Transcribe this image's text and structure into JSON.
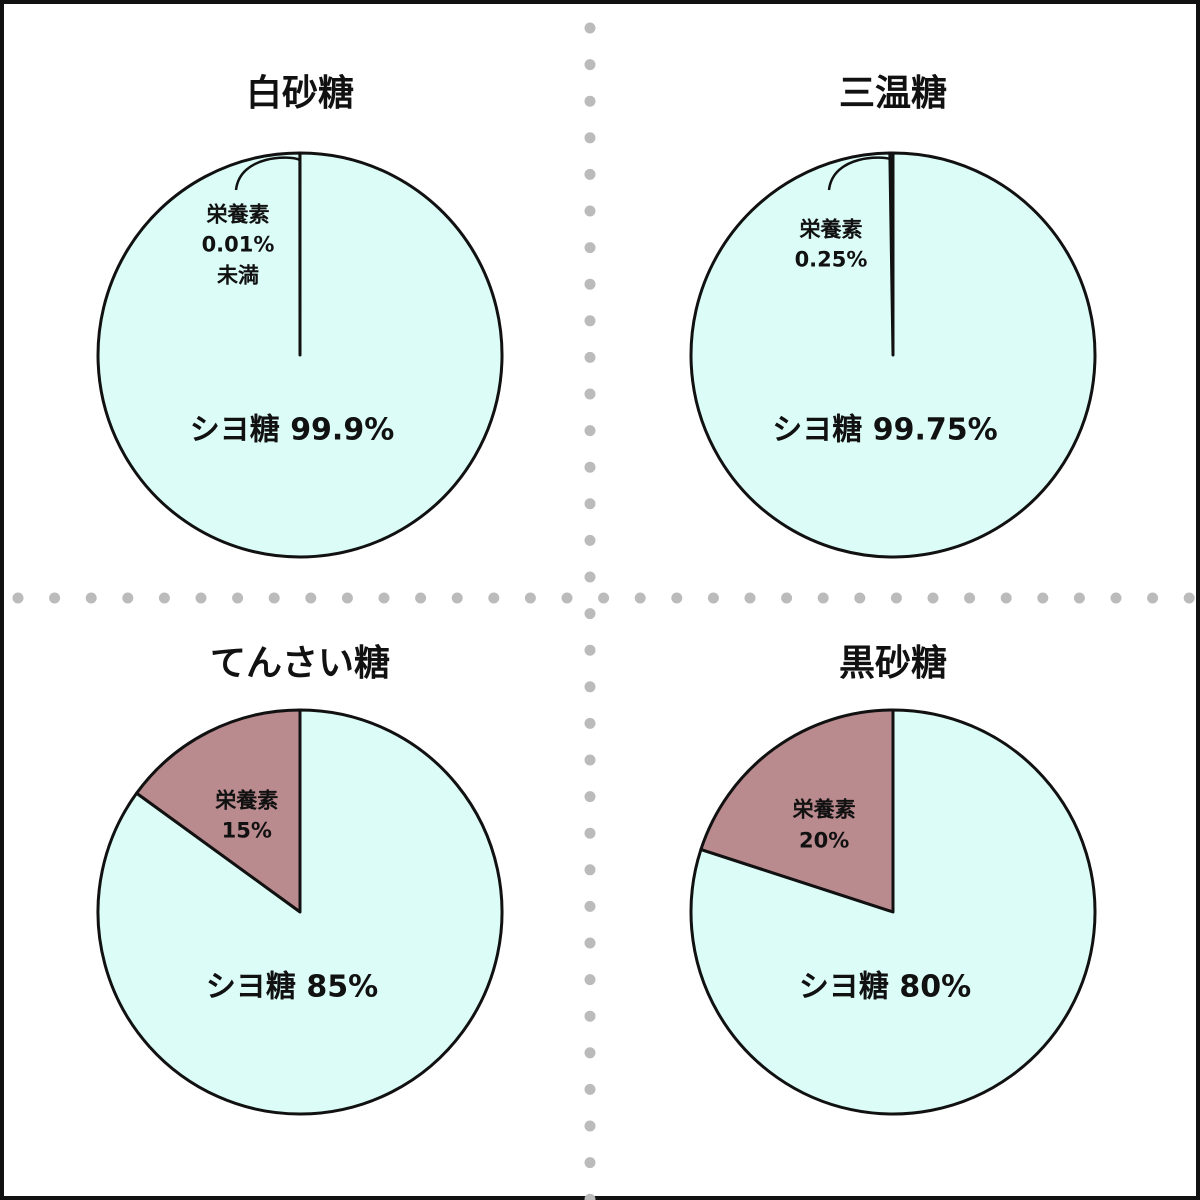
{
  "chart_data": [
    {
      "type": "pie",
      "title": "白砂糖",
      "categories": [
        "栄養素",
        "シヨ糖"
      ],
      "values": [
        0.01,
        99.9
      ],
      "value_labels": [
        "0.01%\n未満",
        "99.9%"
      ],
      "colors": [
        "#b98a8e",
        "#dcfdf7"
      ]
    },
    {
      "type": "pie",
      "title": "三温糖",
      "categories": [
        "栄養素",
        "シヨ糖"
      ],
      "values": [
        0.25,
        99.75
      ],
      "value_labels": [
        "0.25%",
        "99.75%"
      ],
      "colors": [
        "#b98a8e",
        "#dcfdf7"
      ]
    },
    {
      "type": "pie",
      "title": "てんさい糖",
      "categories": [
        "栄養素",
        "シヨ糖"
      ],
      "values": [
        15,
        85
      ],
      "value_labels": [
        "15%",
        "85%"
      ],
      "colors": [
        "#b98a8e",
        "#dcfdf7"
      ]
    },
    {
      "type": "pie",
      "title": "黒砂糖",
      "categories": [
        "栄養素",
        "シヨ糖"
      ],
      "values": [
        20,
        80
      ],
      "value_labels": [
        "20%",
        "80%"
      ],
      "colors": [
        "#b98a8e",
        "#dcfdf7"
      ]
    }
  ]
}
